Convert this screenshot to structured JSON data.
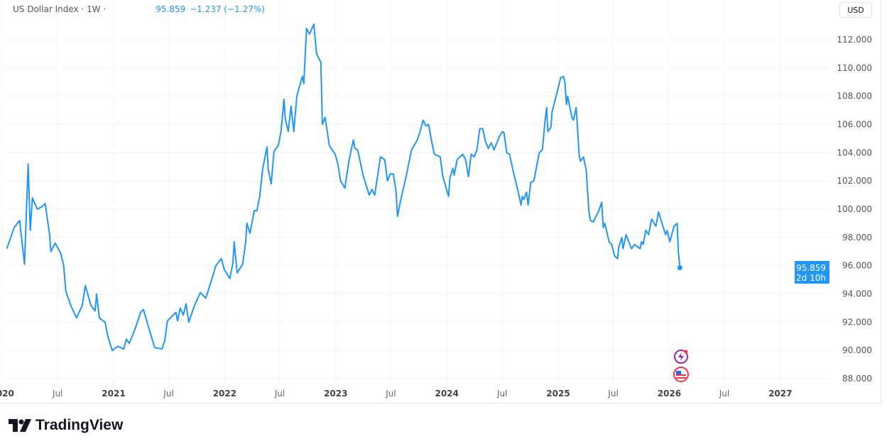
{
  "legend": {
    "symbol_label": "US Dollar Index · 1W ·",
    "last_value": "95.859",
    "change": "−1.237 (−1.27%)"
  },
  "currency_button": "USD",
  "brand": "TradingView",
  "colors": {
    "line": "#2196f3",
    "grid": "#f0f3fa",
    "axis_text": "#555555"
  },
  "chart_data": {
    "type": "line",
    "title": "US Dollar Index",
    "interval": "1W",
    "currency": "USD",
    "ylim": [
      87,
      114
    ],
    "grid": true,
    "y_ticks": [
      "88.000",
      "90.000",
      "92.000",
      "94.000",
      "96.000",
      "98.000",
      "100.000",
      "102.000",
      "104.000",
      "106.000",
      "108.000",
      "110.000",
      "112.000"
    ],
    "x_ticks": [
      {
        "label": "2020",
        "date": "2020-01-01"
      },
      {
        "label": "Jul",
        "date": "2020-07-01"
      },
      {
        "label": "2021",
        "date": "2021-01-01"
      },
      {
        "label": "Jul",
        "date": "2021-07-01"
      },
      {
        "label": "2022",
        "date": "2022-01-01"
      },
      {
        "label": "Jul",
        "date": "2022-07-01"
      },
      {
        "label": "2023",
        "date": "2023-01-01"
      },
      {
        "label": "Jul",
        "date": "2023-07-01"
      },
      {
        "label": "2024",
        "date": "2024-01-01"
      },
      {
        "label": "Jul",
        "date": "2024-07-01"
      },
      {
        "label": "2025",
        "date": "2025-01-01"
      },
      {
        "label": "Jul",
        "date": "2025-07-01"
      },
      {
        "label": "2026",
        "date": "2026-01-01"
      },
      {
        "label": "Jul",
        "date": "2026-07-01"
      },
      {
        "label": "2027",
        "date": "2027-01-01"
      }
    ],
    "last_price": {
      "value": "95.859",
      "countdown": "2d 10h"
    },
    "series": [
      {
        "points": [
          [
            "2020-01-16",
            97.2
          ],
          [
            "2020-02-09",
            98.7
          ],
          [
            "2020-02-27",
            99.2
          ],
          [
            "2020-03-14",
            96.1
          ],
          [
            "2020-03-26",
            103.2
          ],
          [
            "2020-04-02",
            98.5
          ],
          [
            "2020-04-09",
            100.8
          ],
          [
            "2020-04-25",
            100.0
          ],
          [
            "2020-05-12",
            100.2
          ],
          [
            "2020-05-21",
            100.4
          ],
          [
            "2020-06-04",
            98.3
          ],
          [
            "2020-06-09",
            97.0
          ],
          [
            "2020-06-23",
            97.6
          ],
          [
            "2020-07-11",
            96.9
          ],
          [
            "2020-07-21",
            96.0
          ],
          [
            "2020-07-28",
            94.2
          ],
          [
            "2020-08-13",
            93.2
          ],
          [
            "2020-09-01",
            92.3
          ],
          [
            "2020-09-20",
            93.2
          ],
          [
            "2020-09-30",
            94.6
          ],
          [
            "2020-10-18",
            93.2
          ],
          [
            "2020-11-01",
            92.8
          ],
          [
            "2020-11-06",
            94.0
          ],
          [
            "2020-11-15",
            92.3
          ],
          [
            "2020-12-04",
            92.0
          ],
          [
            "2020-12-13",
            91.0
          ],
          [
            "2020-12-27",
            90.0
          ],
          [
            "2021-01-15",
            90.3
          ],
          [
            "2021-02-03",
            90.1
          ],
          [
            "2021-02-12",
            90.8
          ],
          [
            "2021-02-21",
            90.5
          ],
          [
            "2021-03-12",
            91.5
          ],
          [
            "2021-03-31",
            92.7
          ],
          [
            "2021-04-09",
            92.9
          ],
          [
            "2021-04-28",
            91.5
          ],
          [
            "2021-05-16",
            90.2
          ],
          [
            "2021-06-09",
            90.1
          ],
          [
            "2021-06-18",
            90.7
          ],
          [
            "2021-06-27",
            92.1
          ],
          [
            "2021-07-16",
            92.5
          ],
          [
            "2021-07-25",
            92.7
          ],
          [
            "2021-07-30",
            92.1
          ],
          [
            "2021-08-08",
            93.0
          ],
          [
            "2021-08-18",
            92.5
          ],
          [
            "2021-08-27",
            93.3
          ],
          [
            "2021-09-05",
            92.0
          ],
          [
            "2021-09-24",
            93.2
          ],
          [
            "2021-10-13",
            94.1
          ],
          [
            "2021-10-31",
            93.7
          ],
          [
            "2021-11-19",
            95.0
          ],
          [
            "2021-12-03",
            96.0
          ],
          [
            "2021-12-21",
            96.5
          ],
          [
            "2021-12-31",
            95.7
          ],
          [
            "2022-01-18",
            95.1
          ],
          [
            "2022-01-28",
            96.2
          ],
          [
            "2022-02-01",
            97.7
          ],
          [
            "2022-02-11",
            95.5
          ],
          [
            "2022-03-01",
            96.1
          ],
          [
            "2022-03-11",
            97.7
          ],
          [
            "2022-03-15",
            99.0
          ],
          [
            "2022-03-25",
            98.3
          ],
          [
            "2022-04-08",
            99.9
          ],
          [
            "2022-04-17",
            99.9
          ],
          [
            "2022-04-26",
            100.9
          ],
          [
            "2022-05-06",
            102.9
          ],
          [
            "2022-05-20",
            104.4
          ],
          [
            "2022-05-24",
            102.8
          ],
          [
            "2022-06-03",
            101.8
          ],
          [
            "2022-06-12",
            104.1
          ],
          [
            "2022-06-26",
            104.5
          ],
          [
            "2022-07-05",
            105.5
          ],
          [
            "2022-07-15",
            107.8
          ],
          [
            "2022-07-19",
            106.4
          ],
          [
            "2022-07-29",
            105.5
          ],
          [
            "2022-08-07",
            107.3
          ],
          [
            "2022-08-16",
            105.5
          ],
          [
            "2022-08-26",
            108.0
          ],
          [
            "2022-09-13",
            109.4
          ],
          [
            "2022-09-18",
            108.9
          ],
          [
            "2022-09-27",
            112.8
          ],
          [
            "2022-10-07",
            112.4
          ],
          [
            "2022-10-21",
            113.1
          ],
          [
            "2022-10-30",
            111.0
          ],
          [
            "2022-11-13",
            110.4
          ],
          [
            "2022-11-18",
            106.0
          ],
          [
            "2022-11-27",
            106.5
          ],
          [
            "2022-12-11",
            104.5
          ],
          [
            "2022-12-30",
            103.9
          ],
          [
            "2023-01-08",
            103.2
          ],
          [
            "2023-01-17",
            102.0
          ],
          [
            "2023-01-31",
            101.5
          ],
          [
            "2023-02-14",
            103.5
          ],
          [
            "2023-02-28",
            104.9
          ],
          [
            "2023-03-05",
            104.3
          ],
          [
            "2023-03-14",
            104.2
          ],
          [
            "2023-04-02",
            102.3
          ],
          [
            "2023-04-21",
            101.0
          ],
          [
            "2023-04-30",
            101.4
          ],
          [
            "2023-05-09",
            101.0
          ],
          [
            "2023-05-28",
            103.7
          ],
          [
            "2023-06-11",
            103.5
          ],
          [
            "2023-06-20",
            102.0
          ],
          [
            "2023-06-29",
            102.5
          ],
          [
            "2023-07-09",
            102.5
          ],
          [
            "2023-07-18",
            101.3
          ],
          [
            "2023-07-23",
            99.5
          ],
          [
            "2023-08-01",
            100.5
          ],
          [
            "2023-08-20",
            102.3
          ],
          [
            "2023-09-07",
            104.2
          ],
          [
            "2023-09-26",
            104.9
          ],
          [
            "2023-10-05",
            105.5
          ],
          [
            "2023-10-15",
            106.3
          ],
          [
            "2023-10-24",
            105.9
          ],
          [
            "2023-11-02",
            106.0
          ],
          [
            "2023-11-12",
            104.8
          ],
          [
            "2023-11-21",
            103.9
          ],
          [
            "2023-12-10",
            103.7
          ],
          [
            "2023-12-19",
            102.3
          ],
          [
            "2024-01-07",
            100.9
          ],
          [
            "2024-01-11",
            102.2
          ],
          [
            "2024-01-21",
            102.9
          ],
          [
            "2024-01-25",
            102.4
          ],
          [
            "2024-02-04",
            103.5
          ],
          [
            "2024-02-22",
            103.9
          ],
          [
            "2024-03-03",
            103.5
          ],
          [
            "2024-03-12",
            102.3
          ],
          [
            "2024-03-21",
            103.9
          ],
          [
            "2024-03-31",
            103.7
          ],
          [
            "2024-04-09",
            104.2
          ],
          [
            "2024-04-18",
            105.7
          ],
          [
            "2024-04-28",
            105.7
          ],
          [
            "2024-05-07",
            104.8
          ],
          [
            "2024-05-16",
            104.3
          ],
          [
            "2024-05-26",
            104.7
          ],
          [
            "2024-06-04",
            104.2
          ],
          [
            "2024-06-23",
            105.2
          ],
          [
            "2024-07-02",
            105.5
          ],
          [
            "2024-07-07",
            105.4
          ],
          [
            "2024-07-16",
            104.0
          ],
          [
            "2024-07-25",
            103.9
          ],
          [
            "2024-08-04",
            102.9
          ],
          [
            "2024-08-22",
            101.3
          ],
          [
            "2024-09-01",
            100.3
          ],
          [
            "2024-09-05",
            100.9
          ],
          [
            "2024-09-10",
            100.7
          ],
          [
            "2024-09-19",
            101.2
          ],
          [
            "2024-09-24",
            100.3
          ],
          [
            "2024-10-03",
            101.9
          ],
          [
            "2024-10-13",
            102.0
          ],
          [
            "2024-10-31",
            104.0
          ],
          [
            "2024-11-10",
            104.2
          ],
          [
            "2024-11-19",
            106.3
          ],
          [
            "2024-11-24",
            107.2
          ],
          [
            "2024-11-28",
            105.5
          ],
          [
            "2024-12-08",
            105.8
          ],
          [
            "2024-12-12",
            106.9
          ],
          [
            "2024-12-31",
            108.5
          ],
          [
            "2025-01-09",
            109.3
          ],
          [
            "2025-01-18",
            109.4
          ],
          [
            "2025-01-23",
            109.0
          ],
          [
            "2025-01-28",
            107.4
          ],
          [
            "2025-02-01",
            108.0
          ],
          [
            "2025-02-15",
            106.5
          ],
          [
            "2025-02-20",
            106.3
          ],
          [
            "2025-03-01",
            107.2
          ],
          [
            "2025-03-11",
            103.8
          ],
          [
            "2025-03-15",
            103.4
          ],
          [
            "2025-03-25",
            103.7
          ],
          [
            "2025-04-03",
            102.8
          ],
          [
            "2025-04-12",
            99.8
          ],
          [
            "2025-04-17",
            99.2
          ],
          [
            "2025-04-26",
            99.1
          ],
          [
            "2025-05-15",
            99.9
          ],
          [
            "2025-05-24",
            100.5
          ],
          [
            "2025-05-29",
            98.7
          ],
          [
            "2025-06-03",
            99.0
          ],
          [
            "2025-06-17",
            97.7
          ],
          [
            "2025-06-26",
            97.5
          ],
          [
            "2025-07-05",
            96.7
          ],
          [
            "2025-07-15",
            96.5
          ],
          [
            "2025-07-19",
            97.3
          ],
          [
            "2025-07-29",
            98.0
          ],
          [
            "2025-08-02",
            97.2
          ],
          [
            "2025-08-12",
            98.2
          ],
          [
            "2025-08-30",
            97.2
          ],
          [
            "2025-09-09",
            97.5
          ],
          [
            "2025-09-27",
            97.2
          ],
          [
            "2025-10-02",
            97.7
          ],
          [
            "2025-10-07",
            97.5
          ],
          [
            "2025-10-16",
            98.5
          ],
          [
            "2025-10-25",
            98.2
          ],
          [
            "2025-11-04",
            99.3
          ],
          [
            "2025-11-18",
            98.8
          ],
          [
            "2025-11-27",
            99.8
          ],
          [
            "2025-12-11",
            98.8
          ],
          [
            "2025-12-20",
            98.2
          ],
          [
            "2025-12-25",
            98.5
          ],
          [
            "2026-01-03",
            97.7
          ],
          [
            "2026-01-17",
            98.8
          ],
          [
            "2026-01-27",
            99.0
          ],
          [
            "2026-01-31",
            97.0
          ],
          [
            "2026-02-05",
            95.859
          ]
        ]
      }
    ],
    "event_markers": [
      {
        "icon": "lightning-event-icon",
        "color": "#9c27b0"
      },
      {
        "icon": "us-flag-event-icon",
        "color": "#f23645"
      }
    ]
  }
}
